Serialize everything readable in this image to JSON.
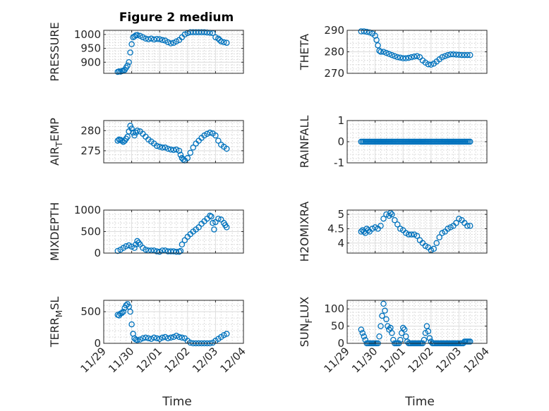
{
  "figure": {
    "title": "Figure 2 medium",
    "xlabel": "Time"
  },
  "colors": {
    "marker": "#0072BD",
    "axis": "#262626"
  },
  "x_ticks": [
    "11/29",
    "11/30",
    "12/01",
    "12/02",
    "12/03",
    "12/04"
  ],
  "chart_data": [
    {
      "type": "scatter",
      "name": "pressure",
      "ylabel_parts": [
        "PRESSURE"
      ],
      "yticks": [
        {
          "v": 900,
          "label": "900"
        },
        {
          "v": 950,
          "label": "950"
        },
        {
          "v": 1000,
          "label": "1000"
        }
      ],
      "ylim": [
        860,
        1015
      ],
      "xlim": [
        0,
        5
      ],
      "series": [
        {
          "name": "PRESSURE",
          "x": [
            0.5,
            0.55,
            0.6,
            0.65,
            0.7,
            0.75,
            0.8,
            0.85,
            0.9,
            0.95,
            1.0,
            1.05,
            1.1,
            1.15,
            1.2,
            1.3,
            1.4,
            1.5,
            1.6,
            1.7,
            1.8,
            1.9,
            2.0,
            2.1,
            2.2,
            2.3,
            2.4,
            2.5,
            2.6,
            2.7,
            2.8,
            2.9,
            3.0,
            3.1,
            3.2,
            3.3,
            3.4,
            3.5,
            3.6,
            3.7,
            3.8,
            3.9,
            4.0,
            4.1,
            4.15,
            4.2,
            4.3,
            4.4
          ],
          "y": [
            865,
            867,
            866,
            868,
            870,
            872,
            880,
            888,
            900,
            935,
            965,
            990,
            993,
            997,
            998,
            995,
            990,
            985,
            983,
            985,
            982,
            984,
            983,
            980,
            978,
            972,
            968,
            970,
            975,
            980,
            990,
            1000,
            1005,
            1008,
            1008,
            1008,
            1008,
            1008,
            1008,
            1007,
            1006,
            1005,
            990,
            985,
            980,
            975,
            972,
            970
          ]
        }
      ]
    },
    {
      "type": "scatter",
      "name": "theta",
      "ylabel_parts": [
        "THETA"
      ],
      "yticks": [
        {
          "v": 270,
          "label": "270"
        },
        {
          "v": 280,
          "label": "280"
        },
        {
          "v": 290,
          "label": "290"
        }
      ],
      "ylim": [
        270,
        290
      ],
      "xlim": [
        0,
        5
      ],
      "series": [
        {
          "name": "THETA",
          "x": [
            0.5,
            0.6,
            0.7,
            0.8,
            0.9,
            1.0,
            1.05,
            1.1,
            1.15,
            1.2,
            1.3,
            1.4,
            1.5,
            1.6,
            1.7,
            1.8,
            1.9,
            2.0,
            2.1,
            2.2,
            2.3,
            2.4,
            2.5,
            2.6,
            2.7,
            2.8,
            2.9,
            3.0,
            3.1,
            3.2,
            3.3,
            3.4,
            3.5,
            3.6,
            3.7,
            3.8,
            3.9,
            4.0,
            4.1,
            4.2,
            4.3,
            4.4
          ],
          "y": [
            289.5,
            289.5,
            289.3,
            289.0,
            288.5,
            287.5,
            285.5,
            283,
            280.5,
            280,
            280,
            279.5,
            279,
            278.5,
            278,
            277.5,
            277.3,
            277,
            277,
            277.2,
            277.5,
            277.8,
            278,
            277.5,
            276,
            275,
            274.2,
            274,
            274.5,
            275.5,
            276.5,
            277.5,
            278,
            278.5,
            278.8,
            278.8,
            278.7,
            278.6,
            278.5,
            278.5,
            278.5,
            278.5
          ]
        }
      ]
    },
    {
      "type": "scatter",
      "name": "airtemp",
      "ylabel_parts": [
        "AIR",
        "T",
        "EMP"
      ],
      "yticks": [
        {
          "v": 275,
          "label": "275"
        },
        {
          "v": 280,
          "label": "280"
        }
      ],
      "ylim": [
        272,
        282.5
      ],
      "xlim": [
        0,
        5
      ],
      "series": [
        {
          "name": "AIR_TEMP",
          "x": [
            0.5,
            0.55,
            0.6,
            0.65,
            0.7,
            0.75,
            0.8,
            0.85,
            0.9,
            0.95,
            1.0,
            1.05,
            1.1,
            1.15,
            1.2,
            1.3,
            1.4,
            1.5,
            1.6,
            1.7,
            1.8,
            1.9,
            2.0,
            2.1,
            2.2,
            2.3,
            2.4,
            2.5,
            2.6,
            2.7,
            2.75,
            2.8,
            2.85,
            2.9,
            3.0,
            3.1,
            3.2,
            3.3,
            3.4,
            3.5,
            3.6,
            3.7,
            3.8,
            3.9,
            4.0,
            4.1,
            4.2,
            4.3,
            4.4
          ],
          "y": [
            277.5,
            277.8,
            277.7,
            277.5,
            277.2,
            277.5,
            278,
            278.5,
            279.8,
            281.2,
            280.5,
            279.5,
            278.8,
            279.5,
            280,
            279.8,
            279.2,
            278.5,
            277.8,
            277.3,
            276.8,
            276.2,
            276,
            275.8,
            275.8,
            275.5,
            275.3,
            275.2,
            275.3,
            275,
            274,
            273.2,
            272.8,
            272.6,
            273.2,
            274.5,
            275.8,
            276.8,
            277.5,
            278.2,
            278.8,
            279.2,
            279.5,
            279.3,
            278.8,
            277.5,
            276.5,
            276,
            275.5
          ]
        }
      ]
    },
    {
      "type": "scatter",
      "name": "rainfall",
      "ylabel_parts": [
        "RAINFALL"
      ],
      "yticks": [
        {
          "v": -1,
          "label": "-1"
        },
        {
          "v": 0,
          "label": "0"
        },
        {
          "v": 1,
          "label": "1"
        }
      ],
      "ylim": [
        -1,
        1
      ],
      "xlim": [
        0,
        5
      ],
      "series": [
        {
          "name": "RAINFALL",
          "x": [
            0.5,
            0.55,
            0.6,
            0.65,
            0.7,
            0.75,
            0.8,
            0.85,
            0.9,
            0.95,
            1.0,
            1.05,
            1.1,
            1.15,
            1.2,
            1.25,
            1.3,
            1.35,
            1.4,
            1.45,
            1.5,
            1.55,
            1.6,
            1.65,
            1.7,
            1.75,
            1.8,
            1.85,
            1.9,
            1.95,
            2.0,
            2.05,
            2.1,
            2.15,
            2.2,
            2.25,
            2.3,
            2.35,
            2.4,
            2.45,
            2.5,
            2.55,
            2.6,
            2.65,
            2.7,
            2.75,
            2.8,
            2.85,
            2.9,
            2.95,
            3.0,
            3.05,
            3.1,
            3.15,
            3.2,
            3.25,
            3.3,
            3.35,
            3.4,
            3.45,
            3.5,
            3.55,
            3.6,
            3.65,
            3.7,
            3.75,
            3.8,
            3.85,
            3.9,
            3.95,
            4.0,
            4.05,
            4.1,
            4.15,
            4.2,
            4.25,
            4.3,
            4.35,
            4.4
          ],
          "y": [
            0,
            0,
            0,
            0,
            0,
            0,
            0,
            0,
            0,
            0,
            0,
            0,
            0,
            0,
            0,
            0,
            0,
            0,
            0,
            0,
            0,
            0,
            0,
            0,
            0,
            0,
            0,
            0,
            0,
            0,
            0,
            0,
            0,
            0,
            0,
            0,
            0,
            0,
            0,
            0,
            0,
            0,
            0,
            0,
            0,
            0,
            0,
            0,
            0,
            0,
            0,
            0,
            0,
            0,
            0,
            0,
            0,
            0,
            0,
            0,
            0,
            0,
            0,
            0,
            0,
            0,
            0,
            0,
            0,
            0,
            0,
            0,
            0,
            0,
            0,
            0,
            0,
            0,
            0
          ]
        }
      ]
    },
    {
      "type": "scatter",
      "name": "mixdepth",
      "ylabel_parts": [
        "MIXDEPTH"
      ],
      "yticks": [
        {
          "v": 0,
          "label": "0"
        },
        {
          "v": 500,
          "label": "500"
        },
        {
          "v": 1000,
          "label": "1000"
        }
      ],
      "ylim": [
        0,
        1000
      ],
      "xlim": [
        0,
        5
      ],
      "series": [
        {
          "name": "MIXDEPTH",
          "x": [
            0.5,
            0.6,
            0.7,
            0.8,
            0.9,
            1.0,
            1.1,
            1.15,
            1.2,
            1.25,
            1.3,
            1.4,
            1.5,
            1.6,
            1.7,
            1.8,
            1.9,
            2.0,
            2.1,
            2.2,
            2.3,
            2.4,
            2.5,
            2.6,
            2.7,
            2.75,
            2.8,
            2.9,
            3.0,
            3.1,
            3.2,
            3.3,
            3.4,
            3.5,
            3.6,
            3.7,
            3.8,
            3.85,
            3.9,
            3.95,
            4.0,
            4.1,
            4.2,
            4.3,
            4.35,
            4.4
          ],
          "y": [
            50,
            80,
            120,
            160,
            180,
            150,
            120,
            200,
            280,
            240,
            200,
            120,
            80,
            60,
            60,
            60,
            40,
            30,
            60,
            60,
            40,
            40,
            40,
            30,
            30,
            50,
            200,
            300,
            380,
            440,
            500,
            550,
            600,
            680,
            740,
            800,
            870,
            850,
            700,
            550,
            720,
            800,
            780,
            700,
            650,
            600
          ]
        }
      ]
    },
    {
      "type": "scatter",
      "name": "h2omixra",
      "ylabel_parts": [
        "H2OMIXRA"
      ],
      "yticks": [
        {
          "v": 4,
          "label": "4"
        },
        {
          "v": 4.5,
          "label": "4.5"
        },
        {
          "v": 5,
          "label": "5"
        }
      ],
      "ylim": [
        3.65,
        5.15
      ],
      "xlim": [
        0,
        5
      ],
      "series": [
        {
          "name": "H2OMIXRA",
          "x": [
            0.5,
            0.55,
            0.6,
            0.65,
            0.7,
            0.75,
            0.8,
            0.9,
            1.0,
            1.1,
            1.2,
            1.3,
            1.4,
            1.5,
            1.55,
            1.6,
            1.7,
            1.8,
            1.9,
            2.0,
            2.1,
            2.2,
            2.3,
            2.4,
            2.5,
            2.6,
            2.7,
            2.8,
            2.9,
            3.0,
            3.1,
            3.2,
            3.3,
            3.4,
            3.5,
            3.6,
            3.7,
            3.8,
            3.9,
            4.0,
            4.1,
            4.2,
            4.3,
            4.4
          ],
          "y": [
            4.4,
            4.45,
            4.4,
            4.35,
            4.5,
            4.45,
            4.4,
            4.5,
            4.55,
            4.5,
            4.6,
            4.85,
            5.0,
            4.95,
            5.05,
            5.0,
            4.8,
            4.65,
            4.5,
            4.45,
            4.35,
            4.3,
            4.3,
            4.3,
            4.25,
            4.1,
            4.0,
            3.9,
            3.85,
            3.75,
            3.8,
            4.0,
            4.2,
            4.35,
            4.4,
            4.5,
            4.55,
            4.6,
            4.7,
            4.85,
            4.8,
            4.7,
            4.6,
            4.6
          ]
        }
      ]
    },
    {
      "type": "scatter",
      "name": "terrmsl",
      "ylabel_parts": [
        "TERR",
        "M",
        "SL"
      ],
      "yticks": [
        {
          "v": 0,
          "label": "0"
        },
        {
          "v": 500,
          "label": "500"
        }
      ],
      "ylim": [
        0,
        680
      ],
      "xlim": [
        0,
        5
      ],
      "series": [
        {
          "name": "TERR_MSL",
          "x": [
            0.5,
            0.55,
            0.6,
            0.65,
            0.7,
            0.75,
            0.8,
            0.85,
            0.9,
            0.95,
            1.0,
            1.05,
            1.1,
            1.15,
            1.2,
            1.3,
            1.4,
            1.5,
            1.6,
            1.7,
            1.8,
            1.9,
            2.0,
            2.1,
            2.2,
            2.3,
            2.4,
            2.5,
            2.6,
            2.7,
            2.8,
            2.9,
            3.0,
            3.1,
            3.2,
            3.3,
            3.4,
            3.5,
            3.6,
            3.7,
            3.8,
            3.9,
            4.0,
            4.1,
            4.2,
            4.3,
            4.4
          ],
          "y": [
            450,
            440,
            470,
            480,
            500,
            560,
            600,
            620,
            580,
            500,
            300,
            150,
            80,
            60,
            50,
            60,
            80,
            90,
            80,
            70,
            90,
            80,
            70,
            90,
            100,
            80,
            90,
            100,
            120,
            100,
            90,
            80,
            40,
            10,
            0,
            0,
            0,
            0,
            0,
            0,
            0,
            10,
            40,
            70,
            100,
            130,
            150
          ]
        }
      ]
    },
    {
      "type": "scatter",
      "name": "sunflux",
      "ylabel_parts": [
        "SUN",
        "F",
        "LUX"
      ],
      "yticks": [
        {
          "v": 0,
          "label": "0"
        },
        {
          "v": 50,
          "label": "50"
        },
        {
          "v": 100,
          "label": "100"
        }
      ],
      "ylim": [
        0,
        125
      ],
      "xlim": [
        0,
        5
      ],
      "series": [
        {
          "name": "SUN_FLUX",
          "x": [
            0.5,
            0.55,
            0.6,
            0.65,
            0.7,
            0.75,
            0.8,
            0.85,
            0.9,
            0.95,
            1.0,
            1.05,
            1.1,
            1.15,
            1.2,
            1.25,
            1.3,
            1.35,
            1.4,
            1.45,
            1.5,
            1.55,
            1.6,
            1.65,
            1.7,
            1.75,
            1.8,
            1.85,
            1.9,
            1.95,
            2.0,
            2.05,
            2.1,
            2.15,
            2.2,
            2.25,
            2.3,
            2.35,
            2.4,
            2.45,
            2.5,
            2.55,
            2.6,
            2.65,
            2.7,
            2.75,
            2.8,
            2.85,
            2.9,
            2.95,
            3.0,
            3.05,
            3.1,
            3.15,
            3.2,
            3.25,
            3.3,
            3.35,
            3.4,
            3.45,
            3.5,
            3.55,
            3.6,
            3.65,
            3.7,
            3.75,
            3.8,
            3.85,
            3.9,
            3.95,
            4.0,
            4.05,
            4.1,
            4.15,
            4.2,
            4.25,
            4.3,
            4.35,
            4.4
          ],
          "y": [
            40,
            30,
            20,
            10,
            0,
            0,
            0,
            0,
            0,
            0,
            0,
            0,
            0,
            20,
            50,
            80,
            115,
            95,
            70,
            50,
            40,
            45,
            30,
            10,
            0,
            0,
            0,
            0,
            10,
            30,
            45,
            40,
            20,
            5,
            0,
            0,
            0,
            0,
            0,
            0,
            0,
            0,
            0,
            0,
            0,
            10,
            30,
            50,
            35,
            15,
            5,
            0,
            0,
            0,
            0,
            0,
            0,
            0,
            0,
            0,
            0,
            0,
            0,
            0,
            0,
            0,
            0,
            0,
            0,
            0,
            0,
            0,
            0,
            0,
            5,
            5,
            5,
            5,
            5
          ]
        }
      ]
    }
  ]
}
